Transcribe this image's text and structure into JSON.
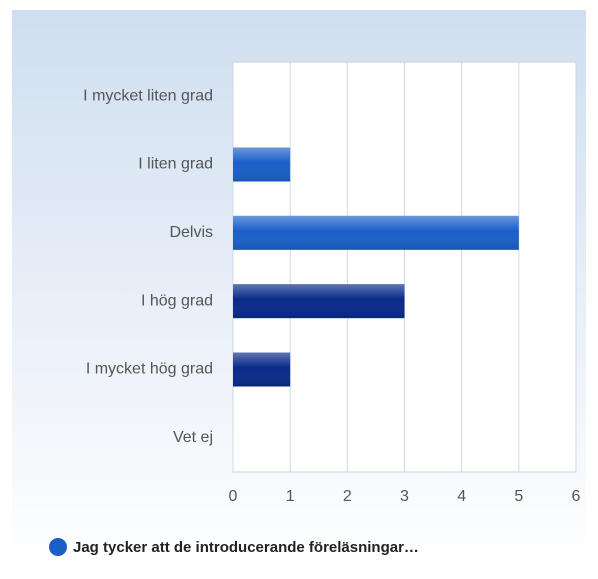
{
  "chart_data": {
    "type": "barh",
    "categories": [
      "I mycket liten grad",
      "I liten grad",
      "Delvis",
      "I hög grad",
      "I mycket hög grad",
      "Vet ej"
    ],
    "series": [
      {
        "name": "Jag tycker att de introducerande föreläsningar…",
        "color": "#1a5fc8",
        "values": [
          0,
          1,
          5,
          3,
          1,
          0
        ]
      }
    ],
    "bar_colors": [
      "#1a5fc8",
      "#1a5fc8",
      "#1a5fc8",
      "#0a2a8a",
      "#0a2a8a",
      "#1a5fc8"
    ],
    "xlim": [
      0,
      6
    ],
    "xticks": [
      0,
      1,
      2,
      3,
      4,
      5,
      6
    ],
    "grid": true,
    "legend": "bottom"
  }
}
